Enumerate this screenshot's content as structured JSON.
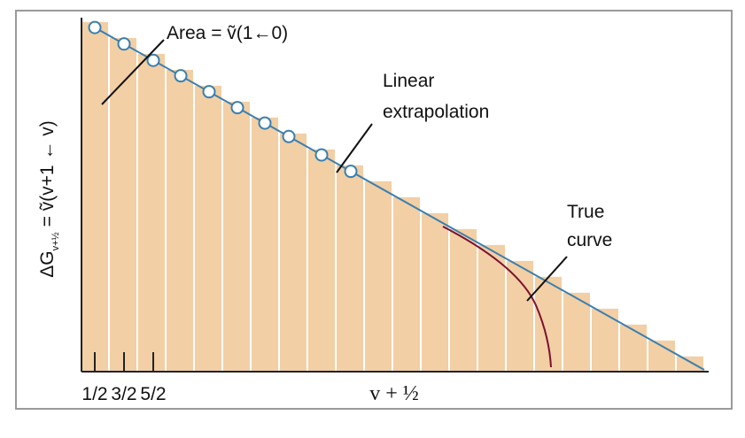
{
  "annotations": {
    "area": "Area = ṽ(1←0)",
    "linear": [
      "Linear",
      "extrapolation"
    ],
    "true_curve": [
      "True",
      "curve"
    ]
  },
  "axes": {
    "y_label": {
      "main": "ΔG",
      "sub": "v+½",
      "rest": " = ṽ(v+1 ← v)"
    },
    "x_label": "v + ½",
    "x_ticks": [
      "1/2",
      "3/2",
      "5/2"
    ]
  }
}
